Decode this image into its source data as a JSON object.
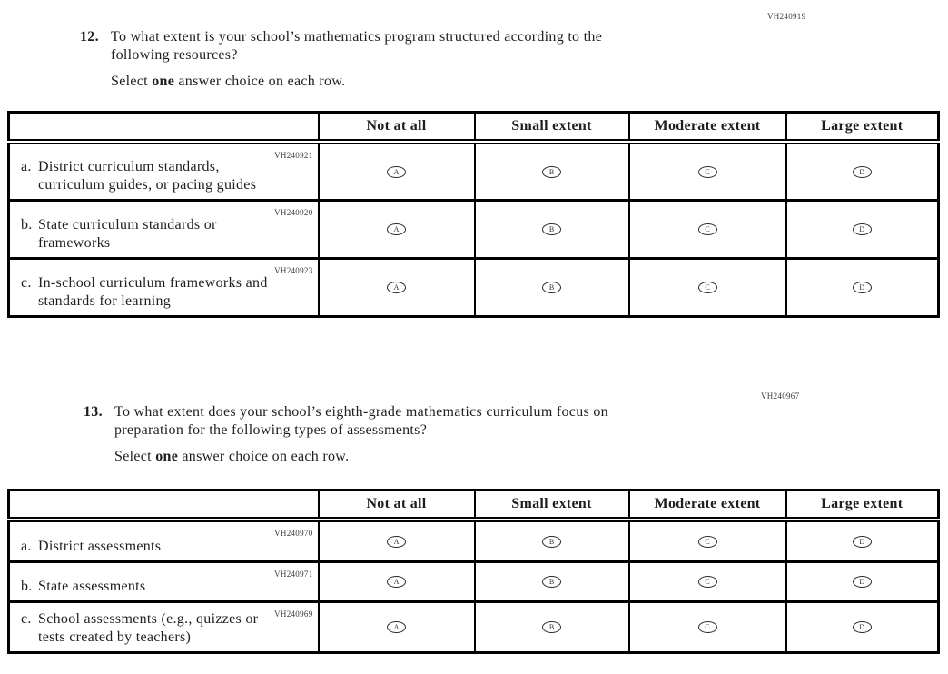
{
  "colors": {
    "text": "#1e1e1e",
    "table_border": "#000000",
    "code_text": "#3a3a3a"
  },
  "questions": [
    {
      "number": "12.",
      "code": "VH240919",
      "text_lines": [
        "To what extent is your school’s mathematics program structured according to the",
        "following resources?"
      ],
      "instruction": {
        "prefix": "Select ",
        "bold": "one",
        "suffix": " answer choice on each row."
      },
      "table": {
        "columns": [
          "Not at all",
          "Small extent",
          "Moderate extent",
          "Large extent"
        ],
        "rows": [
          {
            "letter": "a.",
            "code": "VH240921",
            "label_lines": [
              "District curriculum standards,",
              "curriculum guides, or pacing guides"
            ],
            "options": [
              "A",
              "B",
              "C",
              "D"
            ]
          },
          {
            "letter": "b.",
            "code": "VH240920",
            "label_lines": [
              "State curriculum standards or",
              "frameworks"
            ],
            "options": [
              "A",
              "B",
              "C",
              "D"
            ]
          },
          {
            "letter": "c.",
            "code": "VH240923",
            "label_lines": [
              "In-school curriculum frameworks and",
              "standards for learning"
            ],
            "options": [
              "A",
              "B",
              "C",
              "D"
            ]
          }
        ]
      }
    },
    {
      "number": "13.",
      "code": "VH240967",
      "text_lines": [
        "To what extent does your school’s eighth-grade mathematics curriculum focus on",
        "preparation for the following types of assessments?"
      ],
      "instruction": {
        "prefix": "Select ",
        "bold": "one",
        "suffix": " answer choice on each row."
      },
      "table": {
        "columns": [
          "Not at all",
          "Small extent",
          "Moderate extent",
          "Large extent"
        ],
        "rows": [
          {
            "letter": "a.",
            "code": "VH240970",
            "label_lines": [
              "District assessments"
            ],
            "options": [
              "A",
              "B",
              "C",
              "D"
            ]
          },
          {
            "letter": "b.",
            "code": "VH240971",
            "label_lines": [
              "State assessments"
            ],
            "options": [
              "A",
              "B",
              "C",
              "D"
            ]
          },
          {
            "letter": "c.",
            "code": "VH240969",
            "label_lines": [
              "School assessments (e.g., quizzes or",
              "tests created by teachers)"
            ],
            "options": [
              "A",
              "B",
              "C",
              "D"
            ]
          }
        ]
      }
    }
  ]
}
